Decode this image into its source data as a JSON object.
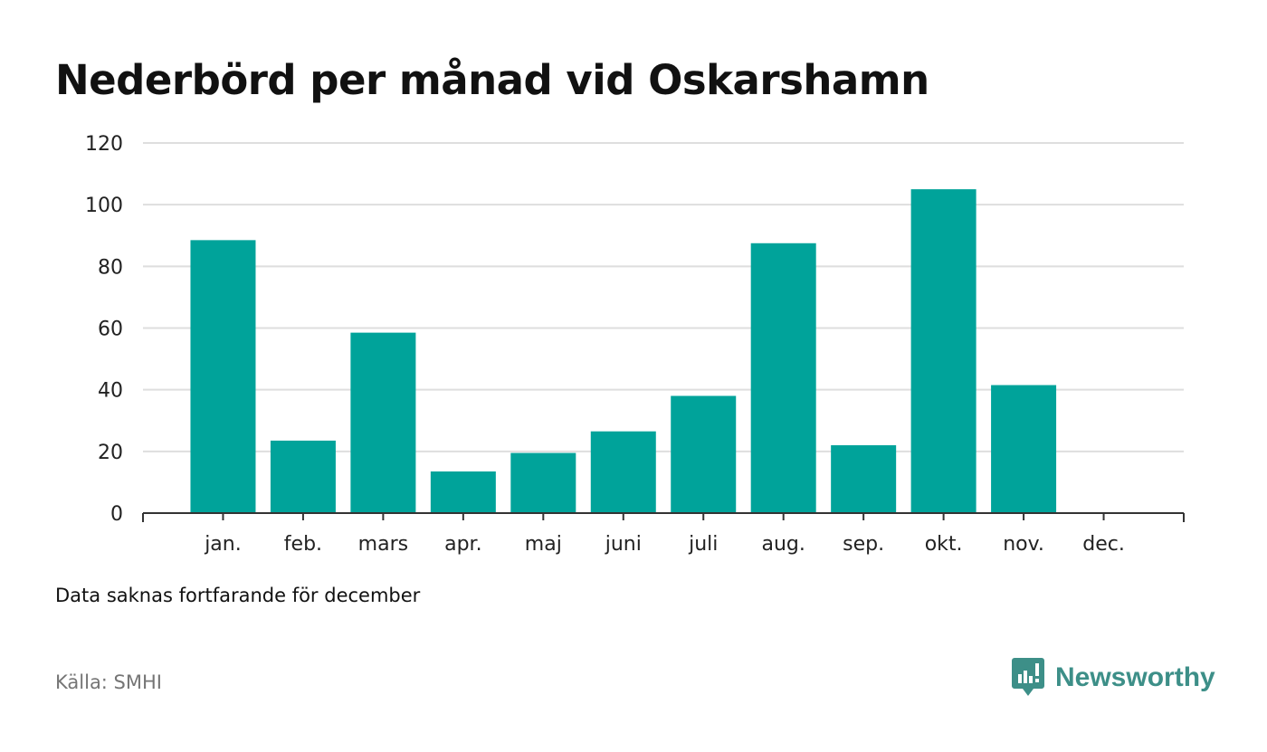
{
  "title": "Nederbörd per månad vid Oskarshamn",
  "note": "Data saknas fortfarande för december",
  "source": "Källa: SMHI",
  "brand": {
    "name": "Newsworthy",
    "icon": "newsworthy-logo-icon",
    "color": "#3d8f88"
  },
  "chart_data": {
    "type": "bar",
    "categories": [
      "jan.",
      "feb.",
      "mars",
      "apr.",
      "maj",
      "juni",
      "juli",
      "aug.",
      "sep.",
      "okt.",
      "nov.",
      "dec."
    ],
    "values": [
      88.5,
      23.5,
      58.5,
      13.5,
      19.5,
      26.5,
      38,
      87.5,
      22,
      105,
      41.5,
      null
    ],
    "ylim": [
      0,
      120
    ],
    "yticks": [
      0,
      20,
      40,
      60,
      80,
      100,
      120
    ],
    "bar_color": "#00a39a",
    "grid": true
  }
}
